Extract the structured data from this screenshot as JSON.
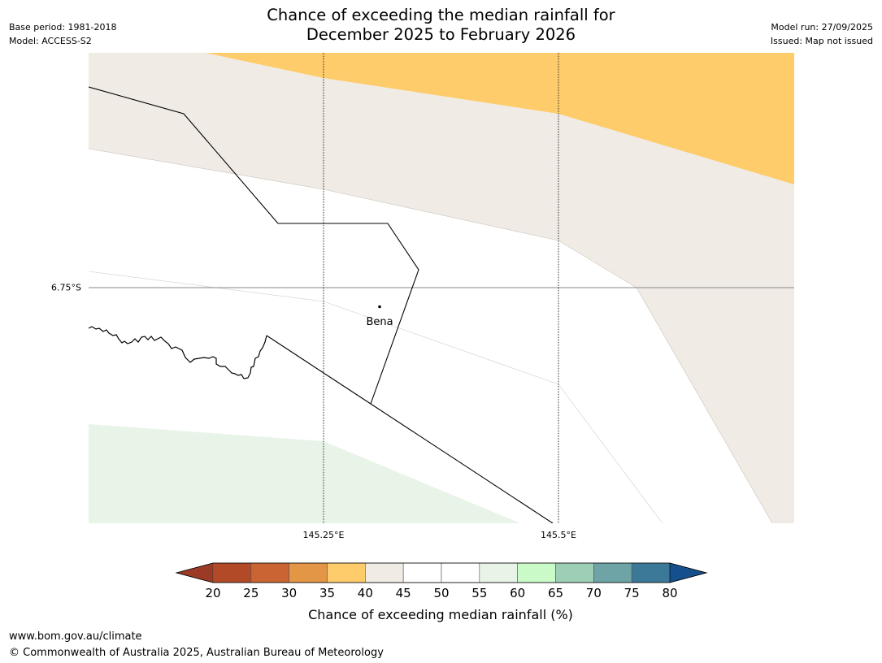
{
  "header": {
    "title_line1": "Chance of exceeding the median rainfall for",
    "title_line2": "December 2025 to February 2026",
    "base_period": "Base period: 1981-2018",
    "model": "Model: ACCESS-S2",
    "model_run": "Model run: 27/09/2025",
    "issued": "Issued: Map not issued"
  },
  "map": {
    "lat_labels": [
      "6.75°S"
    ],
    "lon_labels": [
      "145.25°E",
      "145.5°E"
    ],
    "place": {
      "name": "Bena"
    },
    "category_colors": {
      "35-40": "#fecc6a",
      "40-45": "#f0ebe4",
      "45-55": "#ffffff",
      "55-60": "#e9f4e8"
    }
  },
  "legend": {
    "label": "Chance of exceeding median rainfall (%)",
    "ticks": [
      "20",
      "25",
      "30",
      "35",
      "40",
      "45",
      "50",
      "55",
      "60",
      "65",
      "70",
      "75",
      "80"
    ],
    "colors": [
      "#9b3b26",
      "#b24a27",
      "#ca6432",
      "#e39646",
      "#fecc6a",
      "#f0ebe4",
      "#ffffff",
      "#ffffff",
      "#e9f4e8",
      "#c9fac8",
      "#9ccfb6",
      "#6ea4a5",
      "#3c7897",
      "#15508c"
    ]
  },
  "footer": {
    "url": "www.bom.gov.au/climate",
    "copyright": "© Commonwealth of Australia 2025, Australian Bureau of Meteorology"
  }
}
